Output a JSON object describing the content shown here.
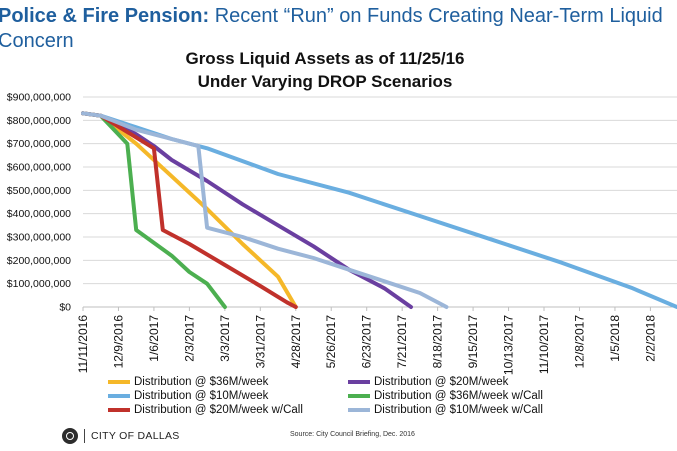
{
  "slide": {
    "title_bold": "Police & Fire Pension:",
    "title_rest": " Recent “Run” on Funds Creating Near-Term Liquid Concern"
  },
  "footer": {
    "organization": "CITY OF DALLAS",
    "source": "Source: City Council Briefing, Dec. 2016"
  },
  "chart_data": {
    "type": "line",
    "title_line1": "Gross Liquid Assets as of 11/25/16",
    "title_line2": "Under Varying DROP Scenarios",
    "xlabel": "",
    "ylabel": "",
    "x_range": [
      "11/11/2016",
      "2/23/2018"
    ],
    "ylim": [
      0,
      900000000
    ],
    "y_ticks": [
      "$0",
      "$100,000,000",
      "$200,000,000",
      "$300,000,000",
      "$400,000,000",
      "$500,000,000",
      "$600,000,000",
      "$700,000,000",
      "$800,000,000",
      "$900,000,000"
    ],
    "x_ticks": [
      "11/11/2016",
      "12/9/2016",
      "1/6/2017",
      "2/3/2017",
      "3/3/2017",
      "3/31/2017",
      "4/28/2017",
      "5/26/2017",
      "6/23/2017",
      "7/21/2017",
      "8/18/2017",
      "9/15/2017",
      "10/13/2017",
      "11/10/2017",
      "12/8/2017",
      "1/5/2018",
      "2/2/2018"
    ],
    "grid": "horizontal",
    "legend_position": "bottom",
    "series": [
      {
        "name": "Distribution @ $36M/week",
        "color": "#f5b829",
        "points": [
          [
            "11/11/2016",
            830000000
          ],
          [
            "11/25/2016",
            820000000
          ],
          [
            "12/23/2016",
            700000000
          ],
          [
            "1/20/2017",
            560000000
          ],
          [
            "2/17/2017",
            420000000
          ],
          [
            "3/17/2017",
            270000000
          ],
          [
            "4/14/2017",
            130000000
          ],
          [
            "4/28/2017",
            0
          ]
        ]
      },
      {
        "name": "Distribution @ $20M/week",
        "color": "#6a3fa0",
        "points": [
          [
            "11/11/2016",
            830000000
          ],
          [
            "11/25/2016",
            820000000
          ],
          [
            "12/23/2016",
            740000000
          ],
          [
            "1/6/2017",
            690000000
          ],
          [
            "1/20/2017",
            630000000
          ],
          [
            "2/17/2017",
            540000000
          ],
          [
            "3/17/2017",
            440000000
          ],
          [
            "4/14/2017",
            350000000
          ],
          [
            "5/12/2017",
            260000000
          ],
          [
            "6/9/2017",
            160000000
          ],
          [
            "7/7/2017",
            80000000
          ],
          [
            "7/28/2017",
            0
          ]
        ]
      },
      {
        "name": "Distribution @ $10M/week",
        "color": "#6aaee0",
        "points": [
          [
            "11/11/2016",
            830000000
          ],
          [
            "11/25/2016",
            820000000
          ],
          [
            "12/23/2016",
            770000000
          ],
          [
            "1/20/2017",
            720000000
          ],
          [
            "2/17/2017",
            680000000
          ],
          [
            "4/14/2017",
            570000000
          ],
          [
            "6/9/2017",
            490000000
          ],
          [
            "8/4/2017",
            390000000
          ],
          [
            "9/29/2017",
            290000000
          ],
          [
            "11/24/2017",
            190000000
          ],
          [
            "1/19/2018",
            80000000
          ],
          [
            "2/23/2018",
            0
          ]
        ]
      },
      {
        "name": "Distribution @ $36M/week w/Call",
        "color": "#4caf50",
        "points": [
          [
            "11/11/2016",
            830000000
          ],
          [
            "11/25/2016",
            820000000
          ],
          [
            "12/16/2016",
            700000000
          ],
          [
            "12/23/2016",
            330000000
          ],
          [
            "1/20/2017",
            220000000
          ],
          [
            "2/3/2017",
            150000000
          ],
          [
            "2/17/2017",
            100000000
          ],
          [
            "3/3/2017",
            0
          ]
        ]
      },
      {
        "name": "Distribution @ $20M/week w/Call",
        "color": "#c0312b",
        "points": [
          [
            "11/11/2016",
            830000000
          ],
          [
            "11/25/2016",
            820000000
          ],
          [
            "1/6/2017",
            680000000
          ],
          [
            "1/13/2017",
            330000000
          ],
          [
            "2/3/2017",
            270000000
          ],
          [
            "3/3/2017",
            180000000
          ],
          [
            "3/31/2017",
            90000000
          ],
          [
            "4/21/2017",
            20000000
          ],
          [
            "4/28/2017",
            0
          ]
        ]
      },
      {
        "name": "Distribution @ $10M/week w/Call",
        "color": "#9cb6d8",
        "points": [
          [
            "11/11/2016",
            830000000
          ],
          [
            "11/25/2016",
            820000000
          ],
          [
            "12/23/2016",
            760000000
          ],
          [
            "2/10/2017",
            690000000
          ],
          [
            "2/17/2017",
            340000000
          ],
          [
            "3/17/2017",
            300000000
          ],
          [
            "4/14/2017",
            250000000
          ],
          [
            "5/12/2017",
            210000000
          ],
          [
            "6/9/2017",
            160000000
          ],
          [
            "7/7/2017",
            110000000
          ],
          [
            "8/4/2017",
            60000000
          ],
          [
            "8/25/2017",
            0
          ]
        ]
      }
    ]
  }
}
